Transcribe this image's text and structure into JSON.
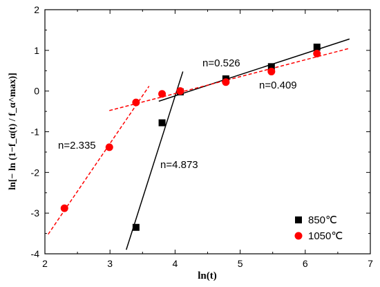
{
  "chart_data": {
    "type": "scatter",
    "title": "",
    "xlabel": "ln(t)",
    "ylabel": "ln[− ln (1−f_α(t) / f_α^max)]",
    "xlim": [
      2,
      7
    ],
    "ylim": [
      -4,
      2
    ],
    "x_ticks": [
      2,
      3,
      4,
      5,
      6,
      7
    ],
    "y_ticks": [
      -4,
      -3,
      -2,
      -1,
      0,
      1,
      2
    ],
    "grid": false,
    "legend_position": "bottom-right",
    "series": [
      {
        "name": "850℃",
        "marker": "square",
        "color": "#000000",
        "points": [
          {
            "x": 3.4,
            "y": -3.35
          },
          {
            "x": 3.8,
            "y": -0.78
          },
          {
            "x": 4.08,
            "y": -0.02
          },
          {
            "x": 4.78,
            "y": 0.3
          },
          {
            "x": 5.48,
            "y": 0.6
          },
          {
            "x": 6.18,
            "y": 1.08
          }
        ]
      },
      {
        "name": "1050℃",
        "marker": "circle",
        "color": "#ff0000",
        "points": [
          {
            "x": 2.3,
            "y": -2.88
          },
          {
            "x": 2.99,
            "y": -1.38
          },
          {
            "x": 3.4,
            "y": -0.28
          },
          {
            "x": 3.8,
            "y": -0.07
          },
          {
            "x": 4.08,
            "y": 0.0
          },
          {
            "x": 4.78,
            "y": 0.22
          },
          {
            "x": 5.48,
            "y": 0.48
          },
          {
            "x": 6.18,
            "y": 0.92
          }
        ]
      }
    ],
    "fit_lines": [
      {
        "label": "n=4.873",
        "color": "#000000",
        "dashed": false,
        "x1": 3.25,
        "y1": -3.9,
        "x2": 4.12,
        "y2": 0.48
      },
      {
        "label": "n=0.526",
        "color": "#000000",
        "dashed": false,
        "x1": 3.75,
        "y1": -0.25,
        "x2": 6.68,
        "y2": 1.28
      },
      {
        "label": "n=2.335",
        "color": "#ff0000",
        "dashed": true,
        "x1": 2.05,
        "y1": -3.52,
        "x2": 3.6,
        "y2": 0.12
      },
      {
        "label": "n=0.409",
        "color": "#ff0000",
        "dashed": true,
        "x1": 2.99,
        "y1": -0.48,
        "x2": 6.68,
        "y2": 1.05
      }
    ]
  }
}
